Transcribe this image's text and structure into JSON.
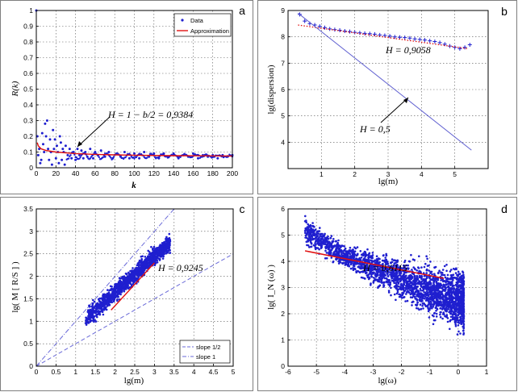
{
  "chart_data": [
    {
      "panel_letter": "a",
      "type": "scatter",
      "ylabel": "R(k)",
      "xlabel": "k",
      "xlim": [
        0,
        200
      ],
      "ylim": [
        0,
        1
      ],
      "xticks": [
        "0",
        "20",
        "40",
        "60",
        "80",
        "100",
        "120",
        "140",
        "160",
        "180",
        "200"
      ],
      "yticks": [
        "0",
        "0.1",
        "0.2",
        "0.3",
        "0.4",
        "0.5",
        "0.6",
        "0.7",
        "0.8",
        "0.9",
        "1"
      ],
      "grid": true,
      "legend_position": "top-right",
      "legend": [
        "Data",
        "Approximation"
      ],
      "annotation": "H = 1 − b/2 = 0,9384",
      "colors": {
        "data": "#1f1fcf",
        "fit": "#e01010"
      },
      "series": [
        {
          "name": "Data",
          "points": [
            [
              0,
              1.0
            ],
            [
              1,
              0.2
            ],
            [
              2,
              0.08
            ],
            [
              3,
              0.12
            ],
            [
              4,
              0.03
            ],
            [
              5,
              0.05
            ],
            [
              6,
              0.22
            ],
            [
              7,
              0.15
            ],
            [
              8,
              0.1
            ],
            [
              9,
              0.28
            ],
            [
              10,
              0.2
            ],
            [
              11,
              0.3
            ],
            [
              12,
              0.12
            ],
            [
              13,
              0.05
            ],
            [
              14,
              0.18
            ],
            [
              15,
              0.1
            ],
            [
              16,
              0.02
            ],
            [
              17,
              0.24
            ],
            [
              18,
              0.12
            ],
            [
              19,
              0.18
            ],
            [
              20,
              0.06
            ],
            [
              21,
              0.14
            ],
            [
              22,
              0.1
            ],
            [
              23,
              0.03
            ],
            [
              24,
              0.2
            ],
            [
              25,
              0.16
            ],
            [
              26,
              0.05
            ],
            [
              27,
              0.12
            ],
            [
              28,
              0.1
            ],
            [
              29,
              0.02
            ],
            [
              30,
              0.14
            ],
            [
              32,
              0.08
            ],
            [
              34,
              0.12
            ],
            [
              36,
              0.06
            ],
            [
              38,
              0.1
            ],
            [
              40,
              0.05
            ],
            [
              42,
              0.12
            ],
            [
              44,
              0.08
            ],
            [
              46,
              0.11
            ],
            [
              48,
              0.06
            ],
            [
              50,
              0.1
            ],
            [
              52,
              0.07
            ],
            [
              55,
              0.12
            ],
            [
              58,
              0.06
            ],
            [
              60,
              0.1
            ],
            [
              63,
              0.08
            ],
            [
              66,
              0.11
            ],
            [
              70,
              0.07
            ],
            [
              74,
              0.1
            ],
            [
              78,
              0.06
            ],
            [
              82,
              0.09
            ],
            [
              86,
              0.07
            ],
            [
              90,
              0.1
            ],
            [
              95,
              0.06
            ],
            [
              100,
              0.09
            ],
            [
              105,
              0.06
            ],
            [
              110,
              0.1
            ],
            [
              115,
              0.07
            ],
            [
              120,
              0.09
            ],
            [
              125,
              0.06
            ],
            [
              130,
              0.09
            ],
            [
              135,
              0.07
            ],
            [
              140,
              0.09
            ],
            [
              145,
              0.06
            ],
            [
              150,
              0.08
            ],
            [
              155,
              0.07
            ],
            [
              160,
              0.09
            ],
            [
              165,
              0.06
            ],
            [
              170,
              0.08
            ],
            [
              175,
              0.07
            ],
            [
              180,
              0.08
            ],
            [
              185,
              0.06
            ],
            [
              190,
              0.08
            ],
            [
              195,
              0.07
            ],
            [
              200,
              0.08
            ]
          ]
        },
        {
          "name": "Approximation",
          "x": [
            1,
            2,
            5,
            10,
            20,
            40,
            60,
            80,
            100,
            140,
            200
          ],
          "y": [
            0.16,
            0.14,
            0.12,
            0.11,
            0.1,
            0.09,
            0.085,
            0.082,
            0.08,
            0.077,
            0.075
          ]
        }
      ]
    },
    {
      "panel_letter": "b",
      "type": "scatter",
      "ylabel": "lg(dispersion)",
      "xlabel": "lg(m)",
      "xlim": [
        0,
        6
      ],
      "ylim": [
        3,
        9
      ],
      "xticks": [
        "1",
        "2",
        "3",
        "4",
        "5"
      ],
      "yticks": [
        "4",
        "5",
        "6",
        "7",
        "8",
        "9"
      ],
      "grid": true,
      "annotations": [
        "H = 0,9058",
        "H = 0,5"
      ],
      "colors": {
        "data": "#1f1fcf",
        "fit": "#e01010",
        "reference": "#5f5fd0"
      },
      "series": [
        {
          "name": "data",
          "x": [
            0.35,
            0.5,
            0.65,
            0.8,
            0.95,
            1.1,
            1.25,
            1.4,
            1.55,
            1.7,
            1.85,
            2.0,
            2.15,
            2.3,
            2.45,
            2.6,
            2.75,
            2.9,
            3.05,
            3.2,
            3.35,
            3.5,
            3.65,
            3.8,
            3.95,
            4.1,
            4.25,
            4.4,
            4.55,
            4.7,
            4.85,
            5.0,
            5.15,
            5.3,
            5.45
          ],
          "y": [
            8.85,
            8.6,
            8.5,
            8.45,
            8.4,
            8.35,
            8.3,
            8.27,
            8.25,
            8.22,
            8.2,
            8.17,
            8.15,
            8.13,
            8.12,
            8.1,
            8.07,
            8.05,
            8.03,
            8.0,
            7.98,
            7.97,
            7.95,
            7.92,
            7.9,
            7.88,
            7.85,
            7.82,
            7.78,
            7.72,
            7.65,
            7.6,
            7.55,
            7.6,
            7.7
          ]
        },
        {
          "name": "fit H=0.9058",
          "x": [
            0.3,
            5.4
          ],
          "y": [
            8.45,
            7.55
          ]
        },
        {
          "name": "H=0.5 reference",
          "x": [
            0.3,
            5.5
          ],
          "y": [
            8.9,
            3.7
          ]
        }
      ]
    },
    {
      "panel_letter": "c",
      "type": "scatter",
      "ylabel": "lg( M [ R/S ] )",
      "xlabel": "lg(m)",
      "xlim": [
        0,
        5
      ],
      "ylim": [
        0,
        3.5
      ],
      "xticks": [
        "0",
        "0.5",
        "1",
        "1.5",
        "2",
        "2.5",
        "3",
        "3.5",
        "4",
        "4.5",
        "5"
      ],
      "yticks": [
        "0",
        "0.5",
        "1",
        "1.5",
        "2",
        "2.5",
        "3",
        "3.5"
      ],
      "grid": true,
      "legend_position": "bottom-right",
      "legend": [
        "slope 1/2",
        "slope 1"
      ],
      "annotation": "H = 0,9245",
      "colors": {
        "data": "#1f1fcf",
        "fit": "#e01010",
        "reference": "#6a6ad8"
      },
      "cloud": {
        "x_range": [
          1.25,
          3.4
        ],
        "center_line": [
          [
            1.25,
            1.05
          ],
          [
            3.4,
            2.75
          ]
        ],
        "spread": 0.2,
        "count": 1400
      },
      "series": [
        {
          "name": "fit",
          "x": [
            1.9,
            3.0
          ],
          "y": [
            1.25,
            2.3
          ]
        },
        {
          "name": "slope 1/2",
          "x": [
            0,
            5
          ],
          "y": [
            0,
            2.5
          ]
        },
        {
          "name": "slope 1",
          "x": [
            0,
            3.5
          ],
          "y": [
            0,
            3.5
          ]
        }
      ]
    },
    {
      "panel_letter": "d",
      "type": "scatter",
      "ylabel": "lg( I_N (ω) )",
      "xlabel": "lg(ω)",
      "xlim": [
        -6,
        1
      ],
      "ylim": [
        0,
        6
      ],
      "xticks": [
        "-6",
        "-5",
        "-4",
        "-3",
        "-2",
        "-1",
        "0",
        "1"
      ],
      "yticks": [
        "0",
        "1",
        "2",
        "3",
        "4",
        "5",
        "6"
      ],
      "grid": true,
      "annotation": "H = 0,6115",
      "colors": {
        "data": "#1f1fcf",
        "fit": "#e01010"
      },
      "cloud": {
        "x_range": [
          -5.4,
          0.2
        ],
        "upper": [
          [
            -5.4,
            6.0
          ],
          [
            -4.0,
            4.8
          ],
          [
            0.2,
            4.1
          ]
        ],
        "lower": [
          [
            -5.4,
            4.3
          ],
          [
            -4.0,
            3.6
          ],
          [
            -2.0,
            2.2
          ],
          [
            0.2,
            0.8
          ]
        ],
        "count": 2600
      },
      "series": [
        {
          "name": "fit",
          "x": [
            -5.4,
            -0.5
          ],
          "y": [
            4.4,
            3.35
          ]
        }
      ]
    }
  ]
}
